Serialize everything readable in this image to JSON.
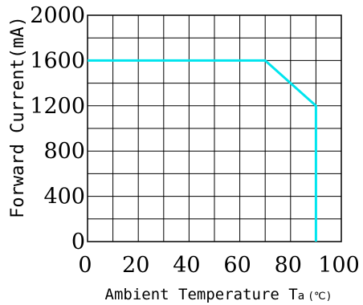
{
  "chart_data": {
    "type": "line",
    "xlabel": "Ambient Temperature T",
    "xlabel_sub": "a",
    "xlabel_unit": "(℃)",
    "ylabel": "Forward Current(mA)",
    "xlim": [
      0,
      100
    ],
    "ylim": [
      0,
      2000
    ],
    "x_ticks": [
      "0",
      "20",
      "40",
      "60",
      "80",
      "100"
    ],
    "y_ticks": [
      "0",
      "400",
      "800",
      "1200",
      "1600",
      "2000"
    ],
    "grid": true,
    "series": [
      {
        "color": "#00e5ee",
        "x": [
          0,
          70,
          90,
          90
        ],
        "y": [
          1600,
          1600,
          1200,
          0
        ]
      }
    ]
  }
}
